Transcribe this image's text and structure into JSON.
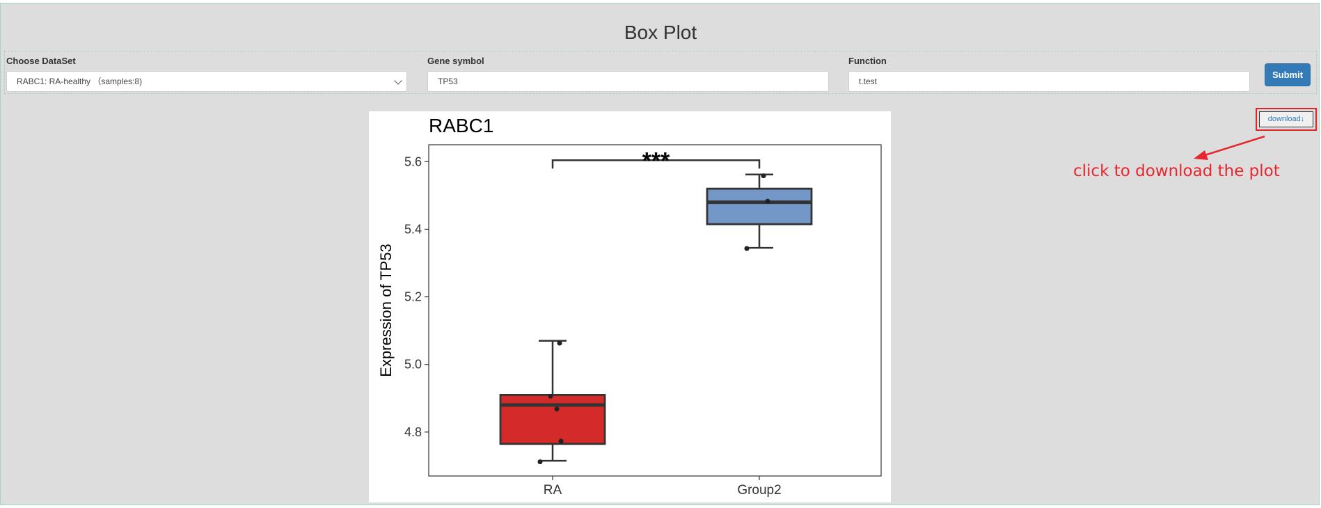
{
  "page": {
    "title": "Box Plot"
  },
  "form": {
    "dataset": {
      "label": "Choose DataSet",
      "value": "RABC1: RA-healthy （samples:8)"
    },
    "gene": {
      "label": "Gene symbol",
      "value": "TP53"
    },
    "function": {
      "label": "Function",
      "value": "t.test"
    },
    "submit_label": "Submit"
  },
  "download": {
    "label": "download",
    "icon": "arrow-down-icon"
  },
  "annotation": {
    "text": "click to download the plot",
    "color": "#e8262d"
  },
  "colors": {
    "ra_box": "#d42a2a",
    "group2_box": "#7398c7",
    "accent": "#337ab7"
  },
  "chart_data": {
    "type": "box",
    "title": "RABC1",
    "ylabel": "Expression of TP53",
    "xlabel": "",
    "categories": [
      "RA",
      "Group2"
    ],
    "ylim": [
      4.67,
      5.65
    ],
    "yticks": [
      4.8,
      5.0,
      5.2,
      5.4,
      5.6
    ],
    "boxes": [
      {
        "name": "RA",
        "min": 4.715,
        "q1": 4.765,
        "median": 4.88,
        "q3": 4.91,
        "max": 5.07,
        "points": [
          4.712,
          4.773,
          4.868,
          4.906,
          5.063
        ]
      },
      {
        "name": "Group2",
        "min": 5.345,
        "q1": 5.415,
        "median": 5.48,
        "q3": 5.52,
        "max": 5.562,
        "points": [
          5.343,
          5.483,
          5.558
        ]
      }
    ],
    "significance": {
      "label": "***",
      "y": 5.6
    }
  }
}
